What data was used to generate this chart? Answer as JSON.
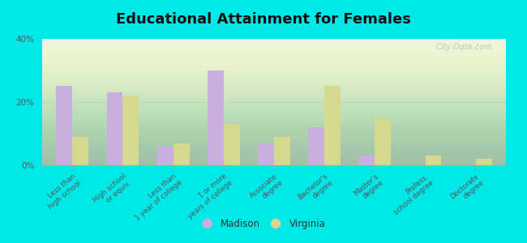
{
  "title": "Educational Attainment for Females",
  "categories": [
    "Less than\nhigh school",
    "High school\nor equiv.",
    "Less than\n1 year of college",
    "1 or more\nyears of college",
    "Associate\ndegree",
    "Bachelor's\ndegree",
    "Master's\ndegree",
    "Profess.\nschool degree",
    "Doctorate\ndegree"
  ],
  "madison_values": [
    25,
    23,
    6,
    30,
    7,
    12,
    3,
    0,
    0
  ],
  "virginia_values": [
    9,
    22,
    7,
    13,
    9,
    25,
    15,
    3,
    2
  ],
  "madison_color": "#c9aee0",
  "virginia_color": "#d4d98e",
  "background_top": "#f5f5e8",
  "background_bottom": "#d8e8c0",
  "outer_background": "#00e8e8",
  "ylim": [
    0,
    40
  ],
  "yticks": [
    0,
    20,
    40
  ],
  "ytick_labels": [
    "0%",
    "20%",
    "40%"
  ],
  "bar_width": 0.32,
  "title_fontsize": 13,
  "legend_labels": [
    "Madison",
    "Virginia"
  ],
  "watermark": "City-Data.com"
}
